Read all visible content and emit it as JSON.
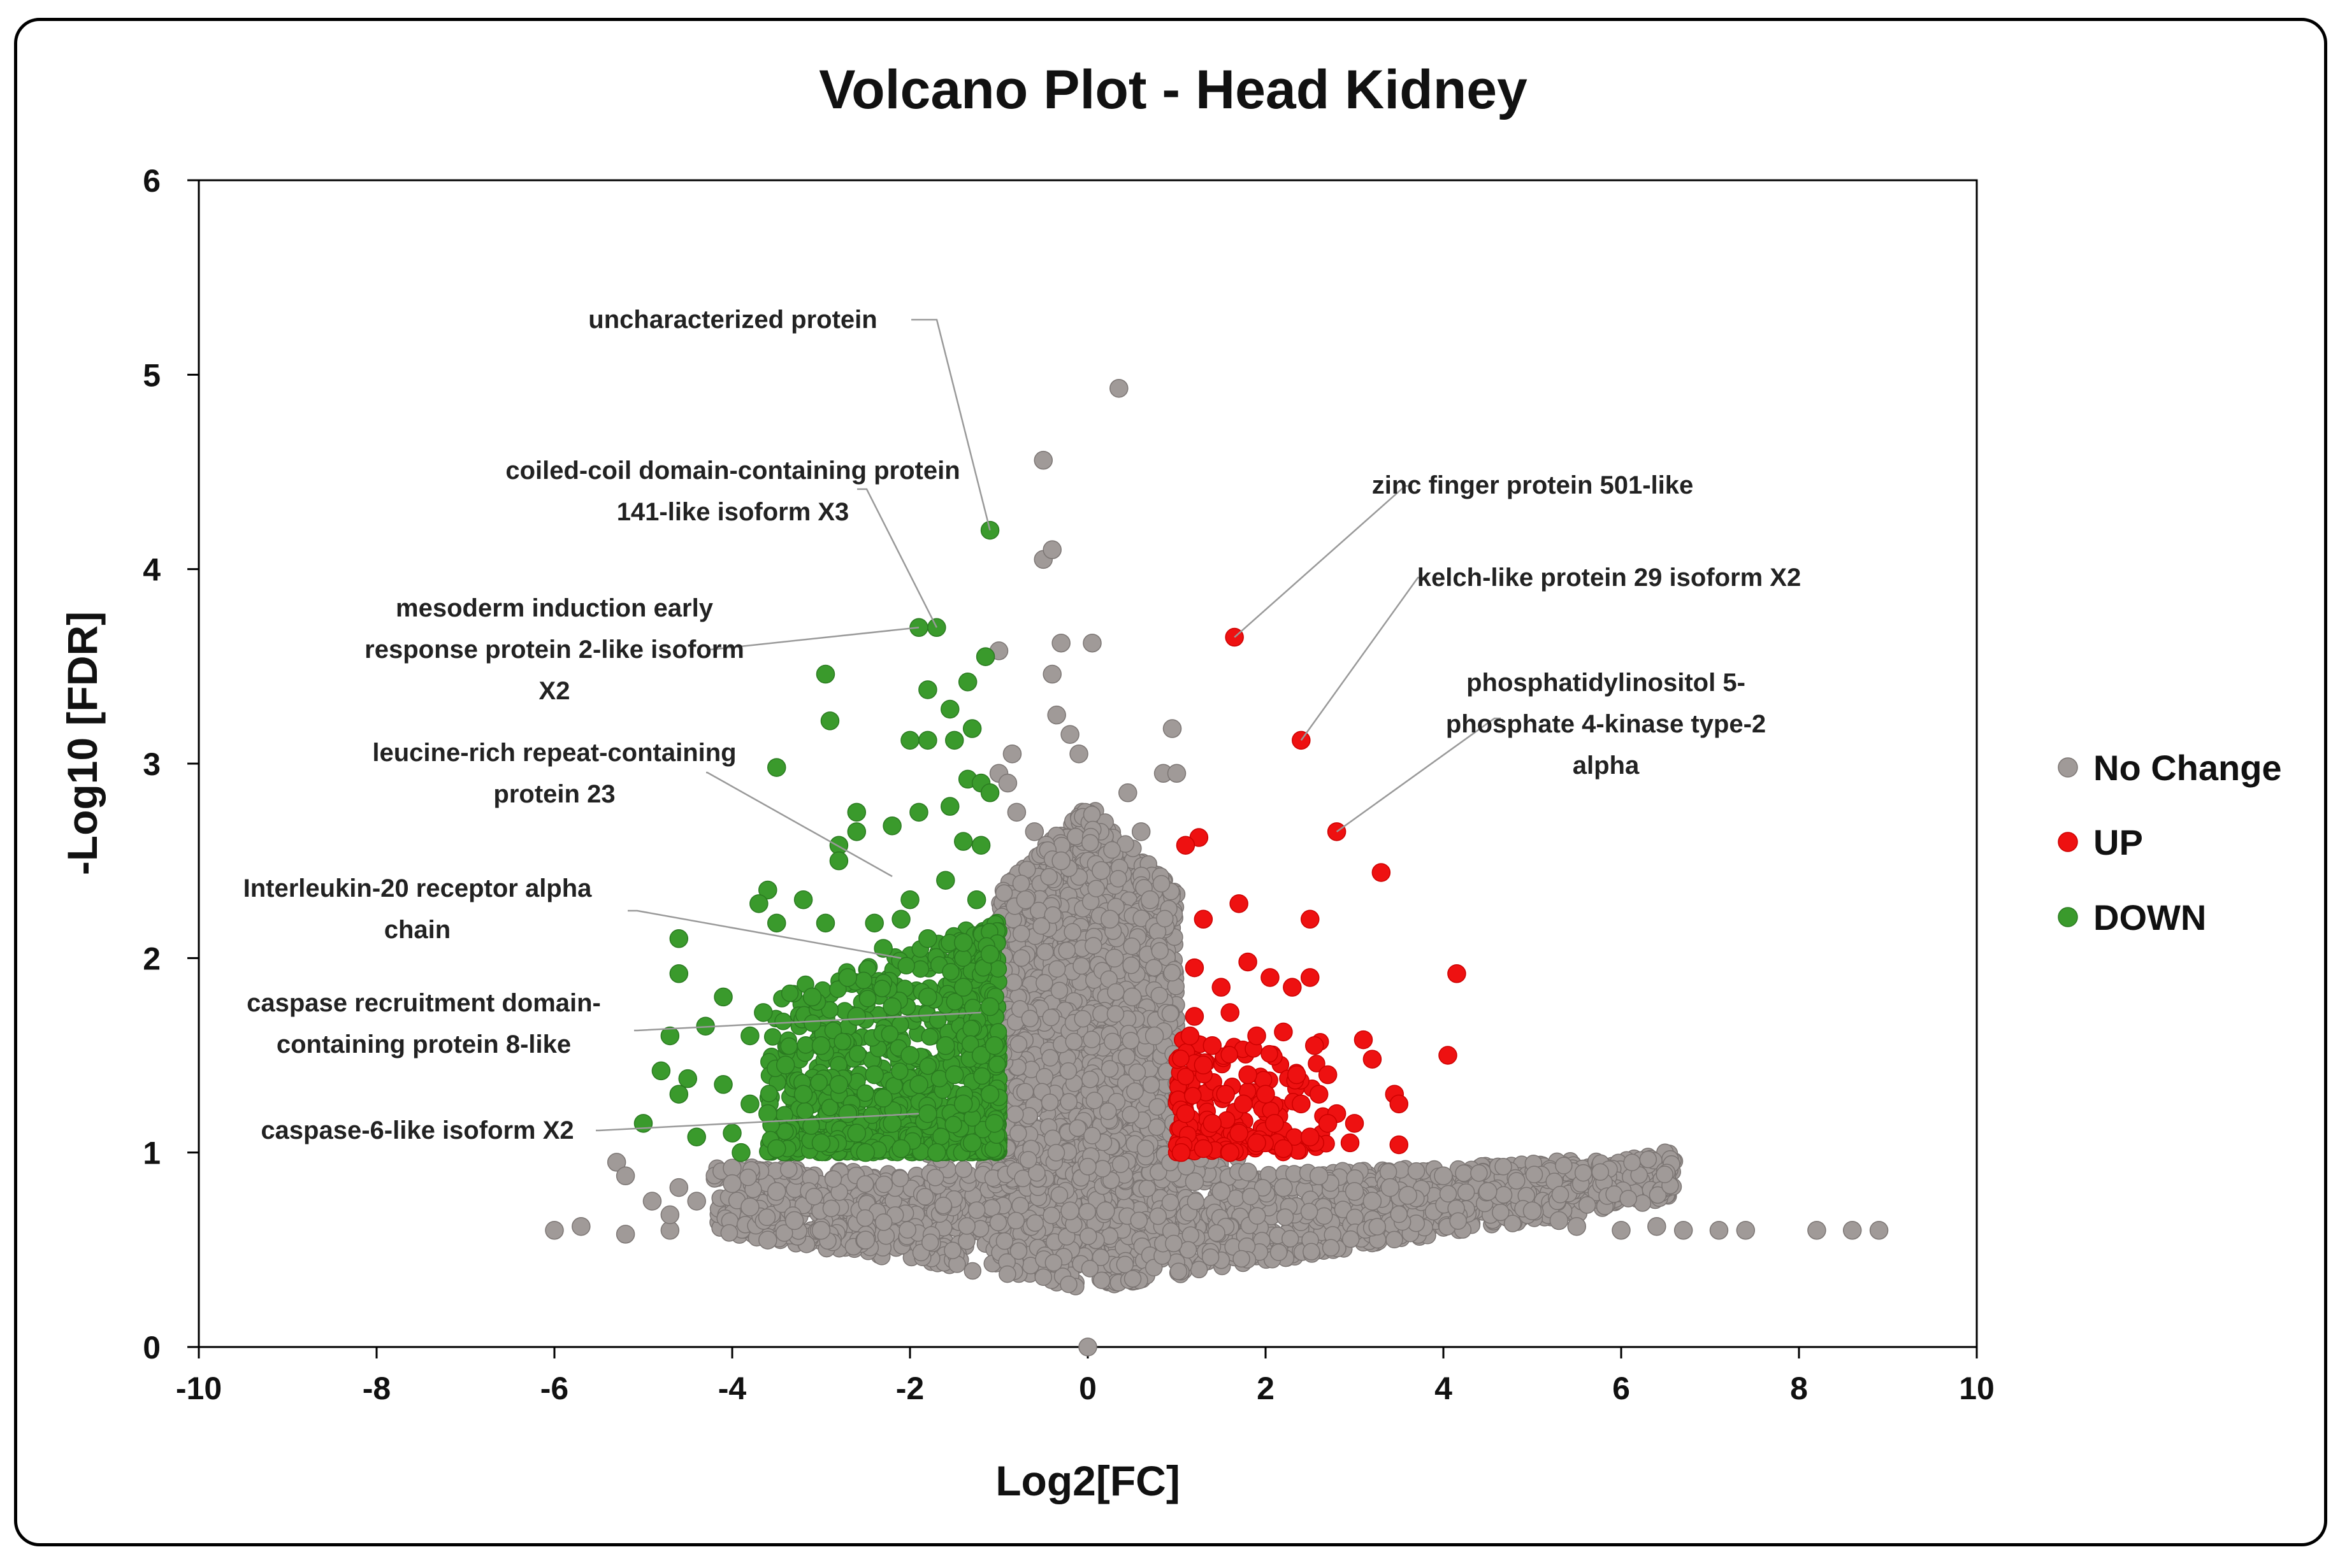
{
  "chart_data": {
    "type": "scatter",
    "title": "Volcano Plot - Head Kidney",
    "xlabel": "Log2[FC]",
    "ylabel": "-Log10 [FDR]",
    "xlim": [
      -10,
      10
    ],
    "ylim": [
      0,
      6
    ],
    "xticks": [
      "-10",
      "-8",
      "-6",
      "-4",
      "-2",
      "0",
      "2",
      "4",
      "6",
      "8",
      "10"
    ],
    "yticks": [
      "0",
      "1",
      "2",
      "3",
      "4",
      "5",
      "6"
    ],
    "grid": false,
    "legend_position": "right",
    "series": [
      {
        "name": "No Change",
        "color": "#a09a98",
        "points": [
          [
            -6.0,
            0.6
          ],
          [
            -5.7,
            0.62
          ],
          [
            -5.3,
            0.95
          ],
          [
            -5.2,
            0.88
          ],
          [
            -5.2,
            0.58
          ],
          [
            -4.9,
            0.75
          ],
          [
            -4.7,
            0.6
          ],
          [
            -4.7,
            0.68
          ],
          [
            -4.6,
            0.82
          ],
          [
            -4.4,
            0.75
          ],
          [
            -4.0,
            0.92
          ],
          [
            -4.0,
            0.84
          ],
          [
            -3.8,
            0.72
          ],
          [
            -3.6,
            0.55
          ],
          [
            -3.5,
            0.8
          ],
          [
            -3.3,
            0.65
          ],
          [
            -3.0,
            0.6
          ],
          [
            -2.5,
            0.55
          ],
          [
            -1.0,
            3.58
          ],
          [
            -1.0,
            2.95
          ],
          [
            -0.9,
            2.9
          ],
          [
            -0.85,
            3.05
          ],
          [
            -0.8,
            2.75
          ],
          [
            -0.6,
            2.65
          ],
          [
            -0.5,
            4.56
          ],
          [
            -0.5,
            4.05
          ],
          [
            -0.4,
            4.1
          ],
          [
            -0.4,
            3.46
          ],
          [
            -0.35,
            3.25
          ],
          [
            -0.3,
            3.62
          ],
          [
            -0.2,
            3.15
          ],
          [
            -0.1,
            3.05
          ],
          [
            0.05,
            3.62
          ],
          [
            0.15,
            2.45
          ],
          [
            0.25,
            2.2
          ],
          [
            0.35,
            4.93
          ],
          [
            0.45,
            2.85
          ],
          [
            0.6,
            2.65
          ],
          [
            0.7,
            2.3
          ],
          [
            0.85,
            2.95
          ],
          [
            0.95,
            3.18
          ],
          [
            1.0,
            2.95
          ],
          [
            0.3,
            2.0
          ],
          [
            -0.7,
            2.3
          ],
          [
            -0.3,
            2.5
          ],
          [
            0.5,
            1.8
          ],
          [
            0.75,
            1.6
          ],
          [
            0.0,
            0.0
          ],
          [
            -0.2,
            0.7
          ],
          [
            0.2,
            0.7
          ],
          [
            1.2,
            0.85
          ],
          [
            1.5,
            0.8
          ],
          [
            1.8,
            0.9
          ],
          [
            2.2,
            0.82
          ],
          [
            2.6,
            0.88
          ],
          [
            3.0,
            0.8
          ],
          [
            3.2,
            0.75
          ],
          [
            3.4,
            0.82
          ],
          [
            3.6,
            0.78
          ],
          [
            4.0,
            0.88
          ],
          [
            4.5,
            0.8
          ],
          [
            5.0,
            0.7
          ],
          [
            5.3,
            0.65
          ],
          [
            5.5,
            0.62
          ],
          [
            6.0,
            0.6
          ],
          [
            6.4,
            0.62
          ],
          [
            6.7,
            0.6
          ],
          [
            7.1,
            0.6
          ],
          [
            7.4,
            0.6
          ],
          [
            8.2,
            0.6
          ],
          [
            8.6,
            0.6
          ],
          [
            8.9,
            0.6
          ]
        ]
      },
      {
        "name": "UP",
        "color": "#ee1111",
        "points": [
          [
            1.65,
            3.65
          ],
          [
            2.4,
            3.12
          ],
          [
            2.8,
            2.65
          ],
          [
            3.3,
            2.44
          ],
          [
            4.15,
            1.92
          ],
          [
            4.05,
            1.5
          ],
          [
            3.45,
            1.3
          ],
          [
            3.5,
            1.25
          ],
          [
            3.5,
            1.04
          ],
          [
            3.2,
            1.48
          ],
          [
            3.1,
            1.58
          ],
          [
            2.5,
            2.2
          ],
          [
            2.5,
            1.9
          ],
          [
            2.55,
            1.55
          ],
          [
            1.7,
            2.28
          ],
          [
            1.25,
            2.62
          ],
          [
            1.1,
            2.58
          ],
          [
            1.3,
            2.2
          ],
          [
            1.2,
            1.95
          ],
          [
            1.5,
            1.85
          ],
          [
            1.8,
            1.98
          ],
          [
            2.05,
            1.9
          ],
          [
            2.3,
            1.85
          ],
          [
            2.2,
            1.62
          ],
          [
            1.6,
            1.72
          ],
          [
            1.15,
            1.6
          ],
          [
            1.3,
            1.45
          ],
          [
            1.55,
            1.3
          ],
          [
            1.8,
            1.4
          ],
          [
            2.0,
            1.3
          ],
          [
            2.35,
            1.4
          ],
          [
            2.6,
            1.3
          ],
          [
            2.8,
            1.2
          ],
          [
            3.0,
            1.15
          ],
          [
            1.1,
            1.2
          ],
          [
            1.4,
            1.15
          ],
          [
            1.7,
            1.1
          ],
          [
            2.1,
            1.15
          ],
          [
            2.4,
            1.25
          ],
          [
            1.05,
            1.0
          ],
          [
            1.3,
            1.02
          ],
          [
            1.6,
            1.0
          ],
          [
            1.9,
            1.05
          ],
          [
            2.2,
            1.02
          ],
          [
            2.5,
            1.08
          ],
          [
            2.7,
            1.15
          ],
          [
            1.2,
            1.7
          ],
          [
            1.9,
            1.6
          ],
          [
            2.7,
            1.4
          ],
          [
            1.4,
            1.55
          ],
          [
            1.75,
            1.25
          ],
          [
            2.95,
            1.05
          ]
        ]
      },
      {
        "name": "DOWN",
        "color": "#3a9a2c",
        "points": [
          [
            -1.1,
            4.2
          ],
          [
            -1.9,
            3.7
          ],
          [
            -1.7,
            3.7
          ],
          [
            -1.15,
            3.55
          ],
          [
            -1.35,
            3.42
          ],
          [
            -1.8,
            3.38
          ],
          [
            -1.55,
            3.28
          ],
          [
            -2.95,
            3.46
          ],
          [
            -2.9,
            3.22
          ],
          [
            -1.3,
            3.18
          ],
          [
            -1.5,
            3.12
          ],
          [
            -2.0,
            3.12
          ],
          [
            -1.8,
            3.12
          ],
          [
            -3.5,
            2.98
          ],
          [
            -1.35,
            2.92
          ],
          [
            -1.2,
            2.9
          ],
          [
            -1.1,
            2.85
          ],
          [
            -1.55,
            2.78
          ],
          [
            -1.9,
            2.75
          ],
          [
            -2.6,
            2.75
          ],
          [
            -2.6,
            2.65
          ],
          [
            -2.8,
            2.58
          ],
          [
            -2.2,
            2.68
          ],
          [
            -1.4,
            2.6
          ],
          [
            -1.2,
            2.58
          ],
          [
            -2.8,
            2.5
          ],
          [
            -3.6,
            2.35
          ],
          [
            -3.7,
            2.28
          ],
          [
            -3.2,
            2.3
          ],
          [
            -4.6,
            2.1
          ],
          [
            -4.6,
            1.92
          ],
          [
            -3.5,
            2.18
          ],
          [
            -2.95,
            2.18
          ],
          [
            -2.4,
            2.18
          ],
          [
            -2.1,
            2.2
          ],
          [
            -3.8,
            1.6
          ],
          [
            -3.65,
            1.72
          ],
          [
            -3.1,
            1.8
          ],
          [
            -2.7,
            1.9
          ],
          [
            -2.3,
            2.05
          ],
          [
            -1.8,
            2.1
          ],
          [
            -1.4,
            2.08
          ],
          [
            -1.1,
            2.02
          ],
          [
            -4.1,
            1.8
          ],
          [
            -4.3,
            1.65
          ],
          [
            -4.8,
            1.42
          ],
          [
            -4.5,
            1.38
          ],
          [
            -4.7,
            1.6
          ],
          [
            -5.0,
            1.15
          ],
          [
            -4.6,
            1.3
          ],
          [
            -4.1,
            1.35
          ],
          [
            -3.8,
            1.25
          ],
          [
            -3.4,
            1.45
          ],
          [
            -3.0,
            1.55
          ],
          [
            -2.6,
            1.7
          ],
          [
            -2.2,
            1.75
          ],
          [
            -1.8,
            1.8
          ],
          [
            -1.4,
            1.85
          ],
          [
            -1.1,
            1.75
          ],
          [
            -1.2,
            1.5
          ],
          [
            -1.6,
            1.55
          ],
          [
            -2.0,
            1.5
          ],
          [
            -2.4,
            1.4
          ],
          [
            -2.8,
            1.35
          ],
          [
            -3.2,
            1.3
          ],
          [
            -3.6,
            1.2
          ],
          [
            -4.0,
            1.1
          ],
          [
            -4.4,
            1.08
          ],
          [
            -3.9,
            1.0
          ],
          [
            -3.5,
            1.02
          ],
          [
            -3.0,
            1.05
          ],
          [
            -2.6,
            1.1
          ],
          [
            -2.2,
            1.15
          ],
          [
            -1.8,
            1.2
          ],
          [
            -1.4,
            1.25
          ],
          [
            -1.1,
            1.3
          ],
          [
            -1.3,
            1.05
          ],
          [
            -1.7,
            1.0
          ],
          [
            -2.1,
            1.02
          ],
          [
            -2.5,
            1.0
          ],
          [
            -1.5,
            1.4
          ],
          [
            -1.9,
            1.35
          ],
          [
            -2.3,
            1.28
          ],
          [
            -2.7,
            1.2
          ],
          [
            -1.25,
            2.3
          ],
          [
            -1.6,
            2.4
          ],
          [
            -2.0,
            2.3
          ],
          [
            -1.05,
            1.55
          ],
          [
            -1.05,
            1.15
          ]
        ]
      }
    ],
    "annotations": [
      {
        "lines": [
          "uncharacterized  protein"
        ],
        "target": [
          -1.1,
          4.2
        ]
      },
      {
        "lines": [
          "coiled-coil  domain-containing  protein",
          "141-like  isoform  X3"
        ],
        "target": [
          -1.7,
          3.7
        ]
      },
      {
        "lines": [
          "mesoderm  induction  early",
          "response  protein  2-like  isoform",
          "X2"
        ],
        "target": [
          -1.9,
          3.7
        ]
      },
      {
        "lines": [
          "leucine-rich  repeat-containing",
          "protein  23"
        ],
        "target": [
          -2.2,
          2.42
        ]
      },
      {
        "lines": [
          "Interleukin-20  receptor  alpha",
          "chain"
        ],
        "target": [
          -2.1,
          2.0
        ]
      },
      {
        "lines": [
          "caspase  recruitment  domain-",
          "containing  protein  8-like"
        ],
        "target": [
          -1.2,
          1.72
        ]
      },
      {
        "lines": [
          "caspase-6-like  isoform  X2"
        ],
        "target": [
          -1.9,
          1.2
        ]
      },
      {
        "lines": [
          "zinc  finger  protein  501-like"
        ],
        "target": [
          1.65,
          3.65
        ]
      },
      {
        "lines": [
          "kelch-like protein  29  isoform  X2"
        ],
        "target": [
          2.4,
          3.12
        ]
      },
      {
        "lines": [
          "phosphatidylinositol  5-",
          "phosphate  4-kinase type-2",
          "alpha"
        ],
        "target": [
          2.8,
          2.65
        ]
      }
    ]
  }
}
